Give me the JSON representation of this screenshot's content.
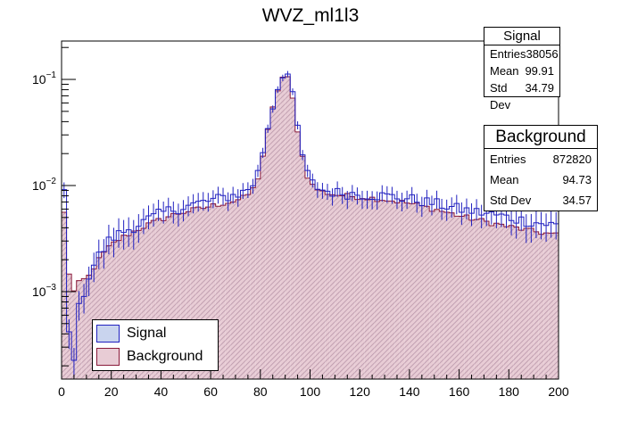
{
  "title": "WVZ_ml1l3",
  "colors": {
    "signal_line": "#2020c0",
    "signal_fill": "#c9d4ee",
    "background_line": "#8a1a3a",
    "background_fill": "#e8ccd5",
    "hatch": "#b895a8",
    "axis": "#000000"
  },
  "legend": [
    {
      "label": "Signal",
      "color": "#c9d4ee",
      "border": "#2020c0"
    },
    {
      "label": "Background",
      "color": "#e8ccd5",
      "border": "#8a1a3a"
    }
  ],
  "stats": {
    "signal": {
      "title": "Signal",
      "rows": [
        {
          "label": "Entries",
          "value": "38056"
        },
        {
          "label": "Mean",
          "value": "99.91"
        },
        {
          "label": "Std Dev",
          "value": "34.79"
        }
      ]
    },
    "background": {
      "title": "Background",
      "rows": [
        {
          "label": "Entries",
          "value": "872820"
        },
        {
          "label": "Mean",
          "value": "94.73"
        },
        {
          "label": "Std Dev",
          "value": "34.57"
        }
      ]
    }
  },
  "chart_data": {
    "type": "histogram",
    "title": "WVZ_ml1l3",
    "xlabel": "",
    "ylabel": "",
    "xlim": [
      0,
      200
    ],
    "ylim": [
      0.00015,
      0.23
    ],
    "yscale": "log",
    "bin_width": 2,
    "x_ticks": [
      0,
      20,
      40,
      60,
      80,
      100,
      120,
      140,
      160,
      180,
      200
    ],
    "x_tick_labels": [
      "0",
      "20",
      "40",
      "60",
      "80",
      "100",
      "120",
      "140",
      "160",
      "180",
      "200"
    ],
    "y_ticks": [
      0.001,
      0.01,
      0.1
    ],
    "y_tick_labels": [
      {
        "base": "10",
        "exp": "−3"
      },
      {
        "base": "10",
        "exp": "−2"
      },
      {
        "base": "10",
        "exp": "−1"
      }
    ],
    "series": [
      {
        "name": "Signal",
        "anchors": [
          [
            1,
            0.009
          ],
          [
            3,
            0.0004
          ],
          [
            5,
            0.00025
          ],
          [
            7,
            0.0007
          ],
          [
            9,
            0.001
          ],
          [
            11,
            0.0014
          ],
          [
            13,
            0.0018
          ],
          [
            15,
            0.0022
          ],
          [
            17,
            0.0025
          ],
          [
            19,
            0.003
          ],
          [
            22,
            0.0034
          ],
          [
            26,
            0.0038
          ],
          [
            30,
            0.0042
          ],
          [
            35,
            0.0048
          ],
          [
            40,
            0.0055
          ],
          [
            45,
            0.006
          ],
          [
            50,
            0.0064
          ],
          [
            55,
            0.0068
          ],
          [
            60,
            0.0072
          ],
          [
            65,
            0.0077
          ],
          [
            70,
            0.0082
          ],
          [
            74,
            0.0088
          ],
          [
            78,
            0.011
          ],
          [
            80,
            0.016
          ],
          [
            82,
            0.028
          ],
          [
            84,
            0.045
          ],
          [
            86,
            0.07
          ],
          [
            88,
            0.1
          ],
          [
            90,
            0.13
          ],
          [
            92,
            0.095
          ],
          [
            94,
            0.05
          ],
          [
            96,
            0.025
          ],
          [
            98,
            0.015
          ],
          [
            100,
            0.011
          ],
          [
            104,
            0.0092
          ],
          [
            110,
            0.0086
          ],
          [
            120,
            0.0083
          ],
          [
            130,
            0.008
          ],
          [
            140,
            0.0075
          ],
          [
            150,
            0.0068
          ],
          [
            160,
            0.006
          ],
          [
            170,
            0.0055
          ],
          [
            180,
            0.005
          ],
          [
            190,
            0.0045
          ],
          [
            200,
            0.0042
          ]
        ]
      },
      {
        "name": "Background",
        "anchors": [
          [
            1,
            0.0055
          ],
          [
            3,
            0.0015
          ],
          [
            5,
            0.001
          ],
          [
            7,
            0.0012
          ],
          [
            9,
            0.0013
          ],
          [
            11,
            0.0014
          ],
          [
            13,
            0.0017
          ],
          [
            15,
            0.002
          ],
          [
            17,
            0.0023
          ],
          [
            19,
            0.0026
          ],
          [
            22,
            0.003
          ],
          [
            26,
            0.0034
          ],
          [
            30,
            0.0038
          ],
          [
            35,
            0.0043
          ],
          [
            40,
            0.0048
          ],
          [
            45,
            0.0053
          ],
          [
            50,
            0.0057
          ],
          [
            55,
            0.006
          ],
          [
            60,
            0.0064
          ],
          [
            65,
            0.0068
          ],
          [
            70,
            0.0072
          ],
          [
            74,
            0.0078
          ],
          [
            78,
            0.0098
          ],
          [
            80,
            0.0145
          ],
          [
            82,
            0.025
          ],
          [
            84,
            0.042
          ],
          [
            86,
            0.067
          ],
          [
            88,
            0.095
          ],
          [
            90,
            0.115
          ],
          [
            92,
            0.09
          ],
          [
            94,
            0.047
          ],
          [
            96,
            0.024
          ],
          [
            98,
            0.0145
          ],
          [
            100,
            0.0105
          ],
          [
            104,
            0.0088
          ],
          [
            110,
            0.0082
          ],
          [
            120,
            0.0078
          ],
          [
            130,
            0.0074
          ],
          [
            140,
            0.0068
          ],
          [
            150,
            0.006
          ],
          [
            160,
            0.0052
          ],
          [
            170,
            0.0046
          ],
          [
            180,
            0.0041
          ],
          [
            190,
            0.0037
          ],
          [
            200,
            0.0034
          ]
        ]
      }
    ]
  }
}
